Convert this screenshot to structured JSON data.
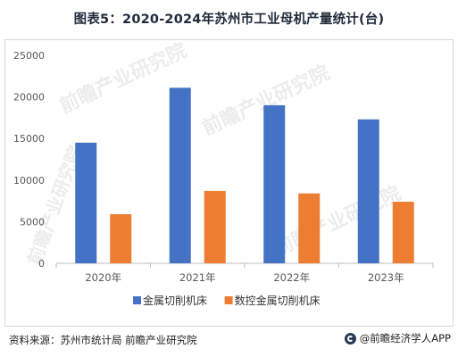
{
  "title": "图表5：2020-2024年苏州市工业母机产量统计(台)",
  "source_text": "资料来源：苏州市统计局 前瞻产业研究院",
  "brand_text": "@前瞻经济学人APP",
  "watermark_text": "前瞻产业研究院",
  "colors": {
    "series1": "#4472C4",
    "series2": "#ED7D31",
    "axis": "#bfbfbf",
    "tick_text": "#595959"
  },
  "chart_data": {
    "type": "bar",
    "categories": [
      "2020年",
      "2021年",
      "2022年",
      "2023年"
    ],
    "series": [
      {
        "name": "金属切削机床",
        "values": [
          14500,
          21100,
          19000,
          17300
        ]
      },
      {
        "name": "数控金属切削机床",
        "values": [
          5900,
          8700,
          8400,
          7400
        ]
      }
    ],
    "ylim": [
      0,
      25000
    ],
    "yticks": [
      0,
      5000,
      10000,
      15000,
      20000,
      25000
    ],
    "grid": false,
    "legend": "bottom",
    "title": "",
    "xlabel": "",
    "ylabel": ""
  }
}
